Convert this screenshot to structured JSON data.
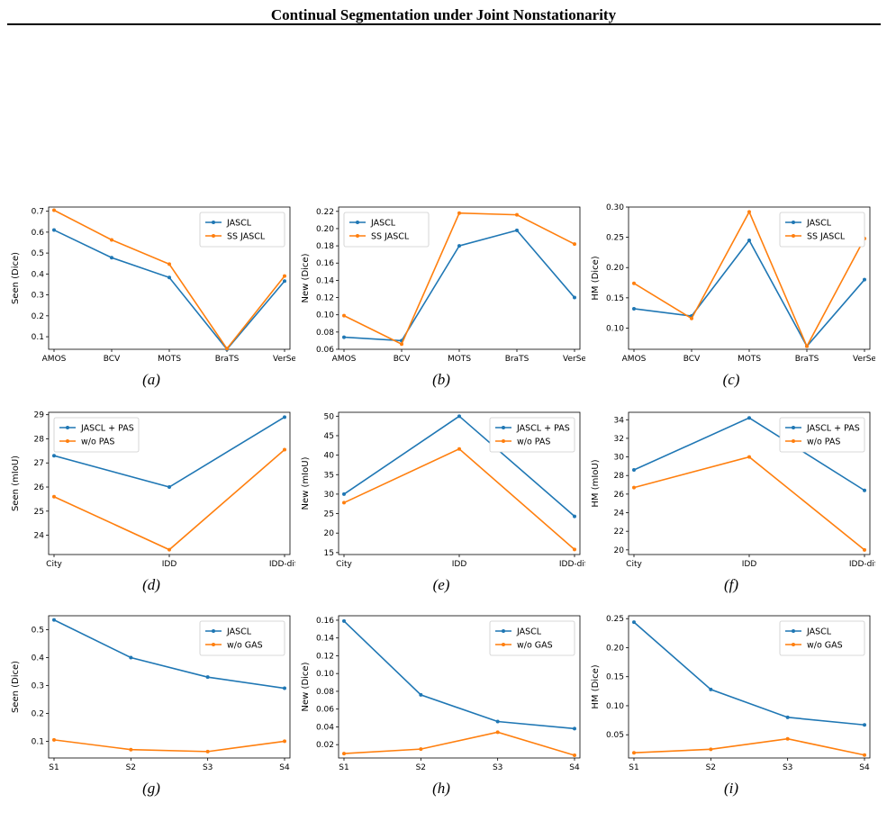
{
  "page_header": "Continual Segmentation under Joint Nonstationarity",
  "colors": {
    "series1": "#1f77b4",
    "series2": "#ff7f0e"
  },
  "chart_data": [
    {
      "caption": "(a)",
      "type": "line",
      "ylabel": "Seen (Dice)",
      "categories": [
        "AMOS",
        "BCV",
        "MOTS",
        "BraTS",
        "VerSe"
      ],
      "ylim": [
        0.04,
        0.72
      ],
      "yticks": [
        0.1,
        0.2,
        0.3,
        0.4,
        0.5,
        0.6,
        0.7
      ],
      "ydec": 1,
      "legend": "top-right",
      "series": [
        {
          "name": "JASCL",
          "values": [
            0.61,
            0.478,
            0.383,
            0.04,
            0.366
          ]
        },
        {
          "name": "SS JASCL",
          "values": [
            0.705,
            0.563,
            0.447,
            0.043,
            0.39
          ]
        }
      ]
    },
    {
      "caption": "(b)",
      "type": "line",
      "ylabel": "New (Dice)",
      "categories": [
        "AMOS",
        "BCV",
        "MOTS",
        "BraTS",
        "VerSe"
      ],
      "ylim": [
        0.06,
        0.225
      ],
      "yticks": [
        0.06,
        0.08,
        0.1,
        0.12,
        0.14,
        0.16,
        0.18,
        0.2,
        0.22
      ],
      "ydec": 2,
      "legend": "top-left",
      "series": [
        {
          "name": "JASCL",
          "values": [
            0.074,
            0.07,
            0.18,
            0.198,
            0.12
          ]
        },
        {
          "name": "SS JASCL",
          "values": [
            0.099,
            0.066,
            0.218,
            0.216,
            0.182
          ]
        }
      ]
    },
    {
      "caption": "(c)",
      "type": "line",
      "ylabel": "HM (Dice)",
      "categories": [
        "AMOS",
        "BCV",
        "MOTS",
        "BraTS",
        "VerSe"
      ],
      "ylim": [
        0.065,
        0.3
      ],
      "yticks": [
        0.1,
        0.15,
        0.2,
        0.25,
        0.3
      ],
      "ydec": 2,
      "legend": "top-right",
      "series": [
        {
          "name": "JASCL",
          "values": [
            0.132,
            0.12,
            0.245,
            0.07,
            0.18
          ]
        },
        {
          "name": "SS JASCL",
          "values": [
            0.174,
            0.116,
            0.292,
            0.07,
            0.248
          ]
        }
      ]
    },
    {
      "caption": "(d)",
      "type": "line",
      "ylabel": "Seen (mIoU)",
      "categories": [
        "City",
        "IDD",
        "IDD-diff"
      ],
      "ylim": [
        23.2,
        29.1
      ],
      "yticks": [
        24,
        25,
        26,
        27,
        28,
        29
      ],
      "ydec": 0,
      "legend": "top-left",
      "series": [
        {
          "name": "JASCL + PAS",
          "values": [
            27.3,
            26.0,
            28.9
          ]
        },
        {
          "name": "w/o PAS",
          "values": [
            25.6,
            23.4,
            27.55
          ]
        }
      ]
    },
    {
      "caption": "(e)",
      "type": "line",
      "ylabel": "New (mIoU)",
      "categories": [
        "City",
        "IDD",
        "IDD-diff"
      ],
      "ylim": [
        14.5,
        51
      ],
      "yticks": [
        15,
        20,
        25,
        30,
        35,
        40,
        45,
        50
      ],
      "ydec": 0,
      "legend": "top-right",
      "series": [
        {
          "name": "JASCL + PAS",
          "values": [
            30.0,
            50.0,
            24.3
          ]
        },
        {
          "name": "w/o PAS",
          "values": [
            27.8,
            41.6,
            15.8
          ]
        }
      ]
    },
    {
      "caption": "(f)",
      "type": "line",
      "ylabel": "HM (mIoU)",
      "categories": [
        "City",
        "IDD",
        "IDD-diff"
      ],
      "ylim": [
        19.5,
        34.8
      ],
      "yticks": [
        20,
        22,
        24,
        26,
        28,
        30,
        32,
        34
      ],
      "ydec": 0,
      "legend": "top-right",
      "series": [
        {
          "name": "JASCL + PAS",
          "values": [
            28.6,
            34.2,
            26.4
          ]
        },
        {
          "name": "w/o PAS",
          "values": [
            26.7,
            30.0,
            20.0
          ]
        }
      ]
    },
    {
      "caption": "(g)",
      "type": "line",
      "ylabel": "Seen (Dice)",
      "categories": [
        "S1",
        "S2",
        "S3",
        "S4"
      ],
      "ylim": [
        0.04,
        0.55
      ],
      "yticks": [
        0.1,
        0.2,
        0.3,
        0.4,
        0.5
      ],
      "ydec": 1,
      "legend": "top-right",
      "series": [
        {
          "name": "JASCL",
          "values": [
            0.535,
            0.4,
            0.33,
            0.29
          ]
        },
        {
          "name": "w/o GAS",
          "values": [
            0.105,
            0.07,
            0.063,
            0.1
          ]
        }
      ]
    },
    {
      "caption": "(h)",
      "type": "line",
      "ylabel": "New (Dice)",
      "categories": [
        "S1",
        "S2",
        "S3",
        "S4"
      ],
      "ylim": [
        0.005,
        0.165
      ],
      "yticks": [
        0.02,
        0.04,
        0.06,
        0.08,
        0.1,
        0.12,
        0.14,
        0.16
      ],
      "ydec": 2,
      "legend": "top-right",
      "series": [
        {
          "name": "JASCL",
          "values": [
            0.159,
            0.076,
            0.046,
            0.038
          ]
        },
        {
          "name": "w/o GAS",
          "values": [
            0.01,
            0.015,
            0.034,
            0.008
          ]
        }
      ]
    },
    {
      "caption": "(i)",
      "type": "line",
      "ylabel": "HM (Dice)",
      "categories": [
        "S1",
        "S2",
        "S3",
        "S4"
      ],
      "ylim": [
        0.01,
        0.255
      ],
      "yticks": [
        0.05,
        0.1,
        0.15,
        0.2,
        0.25
      ],
      "ydec": 2,
      "legend": "top-right",
      "series": [
        {
          "name": "JASCL",
          "values": [
            0.244,
            0.128,
            0.08,
            0.067
          ]
        },
        {
          "name": "w/o GAS",
          "values": [
            0.019,
            0.025,
            0.043,
            0.015
          ]
        }
      ]
    }
  ]
}
